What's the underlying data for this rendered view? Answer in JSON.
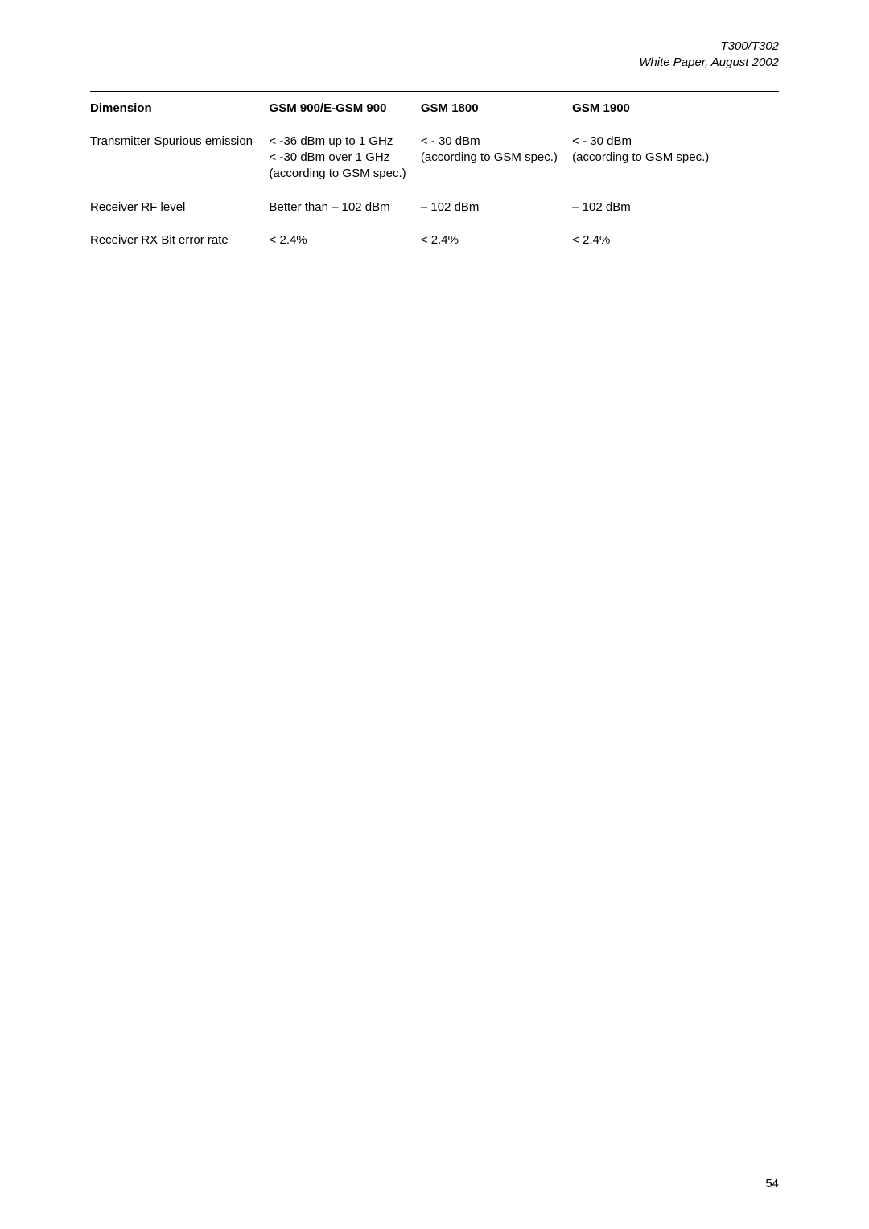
{
  "header": {
    "title": "T300/T302",
    "subtitle": "White Paper, August 2002"
  },
  "table": {
    "columns": [
      {
        "key": "dimension",
        "label": "Dimension"
      },
      {
        "key": "gsm900",
        "label": "GSM 900/E-GSM 900"
      },
      {
        "key": "gsm1800",
        "label": "GSM 1800"
      },
      {
        "key": "gsm1900",
        "label": "GSM 1900"
      }
    ],
    "rows": [
      {
        "dimension": "Transmitter Spurious emission",
        "gsm900": "< -36 dBm up to 1 GHz\n< -30 dBm over 1 GHz\n(according to GSM spec.)",
        "gsm1800": "< - 30 dBm\n(according to GSM spec.)",
        "gsm1900": "< - 30 dBm\n(according to GSM spec.)"
      },
      {
        "dimension": "Receiver RF level",
        "gsm900": "Better than – 102 dBm",
        "gsm1800": "– 102 dBm",
        "gsm1900": "– 102 dBm"
      },
      {
        "dimension": "Receiver RX Bit error rate",
        "gsm900": "< 2.4%",
        "gsm1800": "< 2.4%",
        "gsm1900": "< 2.4%"
      }
    ]
  },
  "page_number": "54",
  "style": {
    "background_color": "#ffffff",
    "text_color": "#000000",
    "border_color": "#000000",
    "header_top_border_width": 2,
    "row_border_width": 1,
    "font_size_pt": 11,
    "header_font_style": "italic"
  }
}
